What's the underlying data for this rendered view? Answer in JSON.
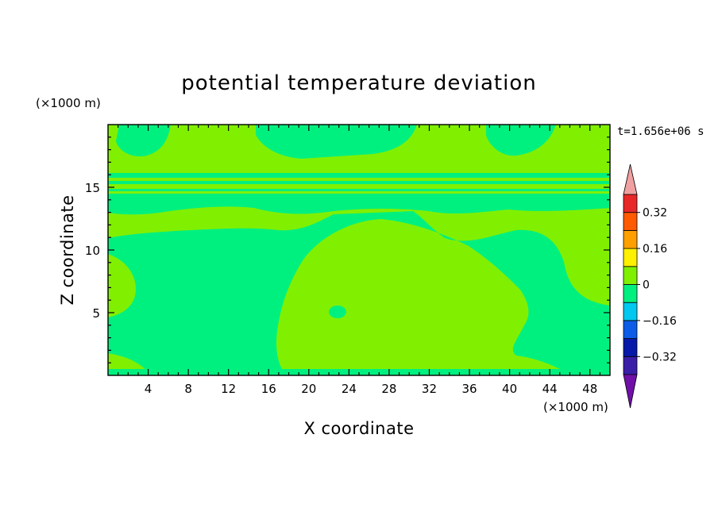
{
  "chart_data": {
    "type": "heatmap",
    "title": "potential temperature deviation",
    "xlabel": "X coordinate",
    "ylabel": "Z coordinate",
    "x_unit": "(×1000 m)",
    "y_unit": "(×1000 m)",
    "time_label": "t=1.656e+06 s",
    "xlim": [
      0,
      50
    ],
    "ylim": [
      0,
      20
    ],
    "x_ticks": [
      4,
      8,
      12,
      16,
      20,
      24,
      28,
      32,
      36,
      40,
      44,
      48
    ],
    "x_tick_labels": [
      "4",
      "8",
      "12",
      "16",
      "20",
      "24",
      "28",
      "32",
      "36",
      "40",
      "44",
      "48"
    ],
    "y_ticks": [
      5,
      10,
      15
    ],
    "y_tick_labels": [
      "5",
      "10",
      "15"
    ],
    "colorbar": {
      "levels": [
        -0.4,
        -0.32,
        -0.24,
        -0.16,
        -0.08,
        0,
        0.08,
        0.16,
        0.24,
        0.32,
        0.4
      ],
      "colors": [
        "#3a1ea8",
        "#0818a8",
        "#0c5ce8",
        "#00c8f0",
        "#00f080",
        "#80f000",
        "#fff000",
        "#ffa000",
        "#ff5a00",
        "#e82828"
      ],
      "under_color": "#7010a8",
      "over_color": "#f0a0a0",
      "labeled_levels": [
        -0.32,
        -0.16,
        0,
        0.16,
        0.32
      ],
      "tick_labels": [
        "−0.32",
        "−0.16",
        "0",
        "0.16",
        "0.32"
      ]
    },
    "field_summary": {
      "negative_band_color": "#00f080",
      "positive_band_color": "#80f000",
      "value_range": [
        -0.08,
        0.08
      ]
    }
  }
}
